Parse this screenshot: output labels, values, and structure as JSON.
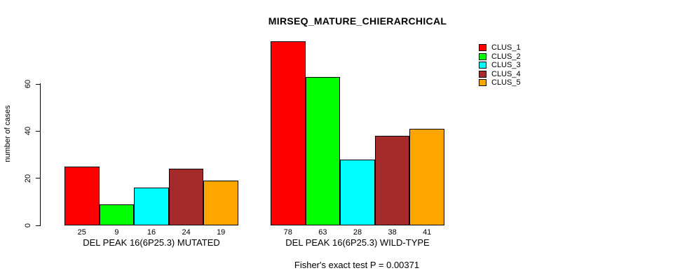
{
  "chart_data": {
    "type": "bar",
    "title": "MIRSEQ_MATURE_CHIERARCHICAL",
    "xlabel": "",
    "ylabel": "number of cases",
    "ylim": [
      0,
      60
    ],
    "yticks": [
      0,
      20,
      40,
      60
    ],
    "grid": false,
    "legend_position": "top-right",
    "categories": [
      "DEL PEAK 16(6P25.3) MUTATED",
      "DEL PEAK 16(6P25.3) WILD-TYPE"
    ],
    "series": [
      {
        "name": "CLUS_1",
        "color": "#FF0000",
        "values": [
          25,
          78
        ]
      },
      {
        "name": "CLUS_2",
        "color": "#00FF00",
        "values": [
          9,
          63
        ]
      },
      {
        "name": "CLUS_3",
        "color": "#00FFFF",
        "values": [
          16,
          28
        ]
      },
      {
        "name": "CLUS_4",
        "color": "#A52A2A",
        "values": [
          24,
          38
        ]
      },
      {
        "name": "CLUS_5",
        "color": "#FFA500",
        "values": [
          19,
          41
        ]
      }
    ],
    "bar_value_labels": {
      "group1": [
        25,
        9,
        16,
        24,
        19
      ],
      "group2": [
        78,
        63,
        28,
        38,
        41
      ]
    },
    "annotation": "Fisher's exact test P = 0.00371"
  }
}
